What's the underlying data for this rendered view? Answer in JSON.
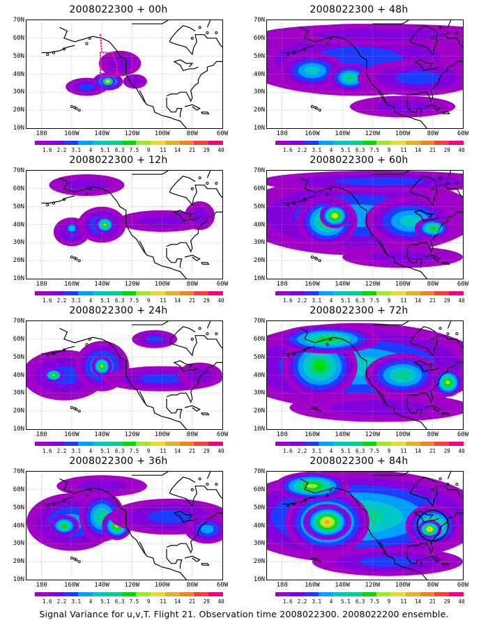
{
  "footer": "Signal Variance for u,v,T. Flight 21. Observation time 2008022300. 2008022200 ensemble.",
  "y_labels": [
    "70N",
    "60N",
    "50N",
    "40N",
    "30N",
    "20N",
    "10N"
  ],
  "x_labels": [
    "180",
    "160W",
    "140W",
    "120W",
    "100W",
    "80W",
    "60W"
  ],
  "colorbar": {
    "labels": [
      "1.6",
      "2.2",
      "3.1",
      "4",
      "5.1",
      "6.3",
      "7.5",
      "9",
      "11",
      "14",
      "21",
      "29",
      "40"
    ],
    "colors": [
      "#a000c8",
      "#8200dc",
      "#1e3cff",
      "#00a0ff",
      "#00c8c8",
      "#00d28c",
      "#00dc00",
      "#a0e632",
      "#e6dc32",
      "#e6af2d",
      "#f08228",
      "#fa3c3c",
      "#f00082"
    ]
  },
  "panels": [
    {
      "title": "2008022300  + 00h",
      "blobs": [
        [
          -150,
          33,
          14,
          5,
          2
        ],
        [
          -136,
          36,
          10,
          5,
          6
        ],
        [
          -136,
          36,
          5,
          3,
          9
        ],
        [
          -128,
          46,
          14,
          7,
          1
        ],
        [
          -118,
          36,
          8,
          4,
          1
        ]
      ],
      "target_dots": true,
      "circle": false
    },
    {
      "title": "2008022300  + 12h",
      "blobs": [
        [
          -160,
          36,
          12,
          8,
          2
        ],
        [
          -160,
          38,
          6,
          4,
          4
        ],
        [
          -140,
          40,
          16,
          10,
          3
        ],
        [
          -138,
          40,
          7,
          5,
          7
        ],
        [
          -100,
          42,
          30,
          6,
          1
        ],
        [
          -150,
          62,
          25,
          6,
          1
        ],
        [
          -75,
          45,
          10,
          8,
          1
        ]
      ],
      "target_dots": false,
      "circle": false
    },
    {
      "title": "2008022300  + 24h",
      "blobs": [
        [
          -165,
          40,
          28,
          14,
          2
        ],
        [
          -172,
          40,
          7,
          4,
          7
        ],
        [
          -140,
          45,
          18,
          14,
          4
        ],
        [
          -140,
          45,
          7,
          6,
          7
        ],
        [
          -100,
          38,
          40,
          7,
          2
        ],
        [
          -105,
          60,
          15,
          5,
          2
        ],
        [
          -75,
          40,
          15,
          7,
          1
        ]
      ],
      "target_dots": false,
      "circle": false
    },
    {
      "title": "2008022300  + 36h",
      "blobs": [
        [
          -160,
          42,
          30,
          16,
          3
        ],
        [
          -165,
          40,
          10,
          6,
          6
        ],
        [
          -140,
          45,
          15,
          14,
          5
        ],
        [
          -130,
          40,
          10,
          8,
          7
        ],
        [
          -95,
          45,
          40,
          10,
          2
        ],
        [
          -70,
          38,
          15,
          8,
          3
        ],
        [
          -140,
          62,
          30,
          6,
          1
        ]
      ],
      "target_dots": false,
      "circle": false
    },
    {
      "title": "2008022300  + 48h",
      "blobs": [
        [
          -130,
          48,
          80,
          20,
          2
        ],
        [
          -160,
          42,
          22,
          10,
          4
        ],
        [
          -135,
          38,
          15,
          8,
          5
        ],
        [
          -90,
          38,
          40,
          10,
          2
        ],
        [
          -115,
          62,
          80,
          6,
          1
        ],
        [
          -100,
          22,
          35,
          6,
          1
        ]
      ],
      "target_dots": false,
      "circle": false
    },
    {
      "title": "2008022300  + 60h",
      "blobs": [
        [
          -130,
          45,
          80,
          22,
          3
        ],
        [
          -150,
          42,
          20,
          14,
          6
        ],
        [
          -145,
          45,
          10,
          7,
          8
        ],
        [
          -95,
          42,
          30,
          14,
          4
        ],
        [
          -80,
          38,
          12,
          6,
          6
        ],
        [
          -115,
          64,
          80,
          6,
          2
        ],
        [
          -100,
          22,
          40,
          6,
          1
        ]
      ],
      "target_dots": false,
      "circle": false
    },
    {
      "title": "2008022300  + 72h",
      "blobs": [
        [
          -130,
          45,
          85,
          24,
          4
        ],
        [
          -155,
          45,
          25,
          18,
          6
        ],
        [
          -100,
          40,
          25,
          12,
          5
        ],
        [
          -70,
          36,
          10,
          8,
          7
        ],
        [
          -150,
          60,
          35,
          8,
          6
        ],
        [
          -115,
          22,
          60,
          8,
          1
        ]
      ],
      "target_dots": false,
      "circle": false
    },
    {
      "title": "2008022300  + 84h",
      "blobs": [
        [
          -130,
          45,
          85,
          26,
          5
        ],
        [
          -150,
          42,
          28,
          18,
          7
        ],
        [
          -150,
          42,
          16,
          10,
          9
        ],
        [
          -80,
          40,
          18,
          12,
          6
        ],
        [
          -82,
          38,
          8,
          5,
          9
        ],
        [
          -160,
          62,
          25,
          8,
          7
        ],
        [
          -110,
          20,
          50,
          8,
          2
        ]
      ],
      "target_dots": false,
      "circle": true
    }
  ]
}
